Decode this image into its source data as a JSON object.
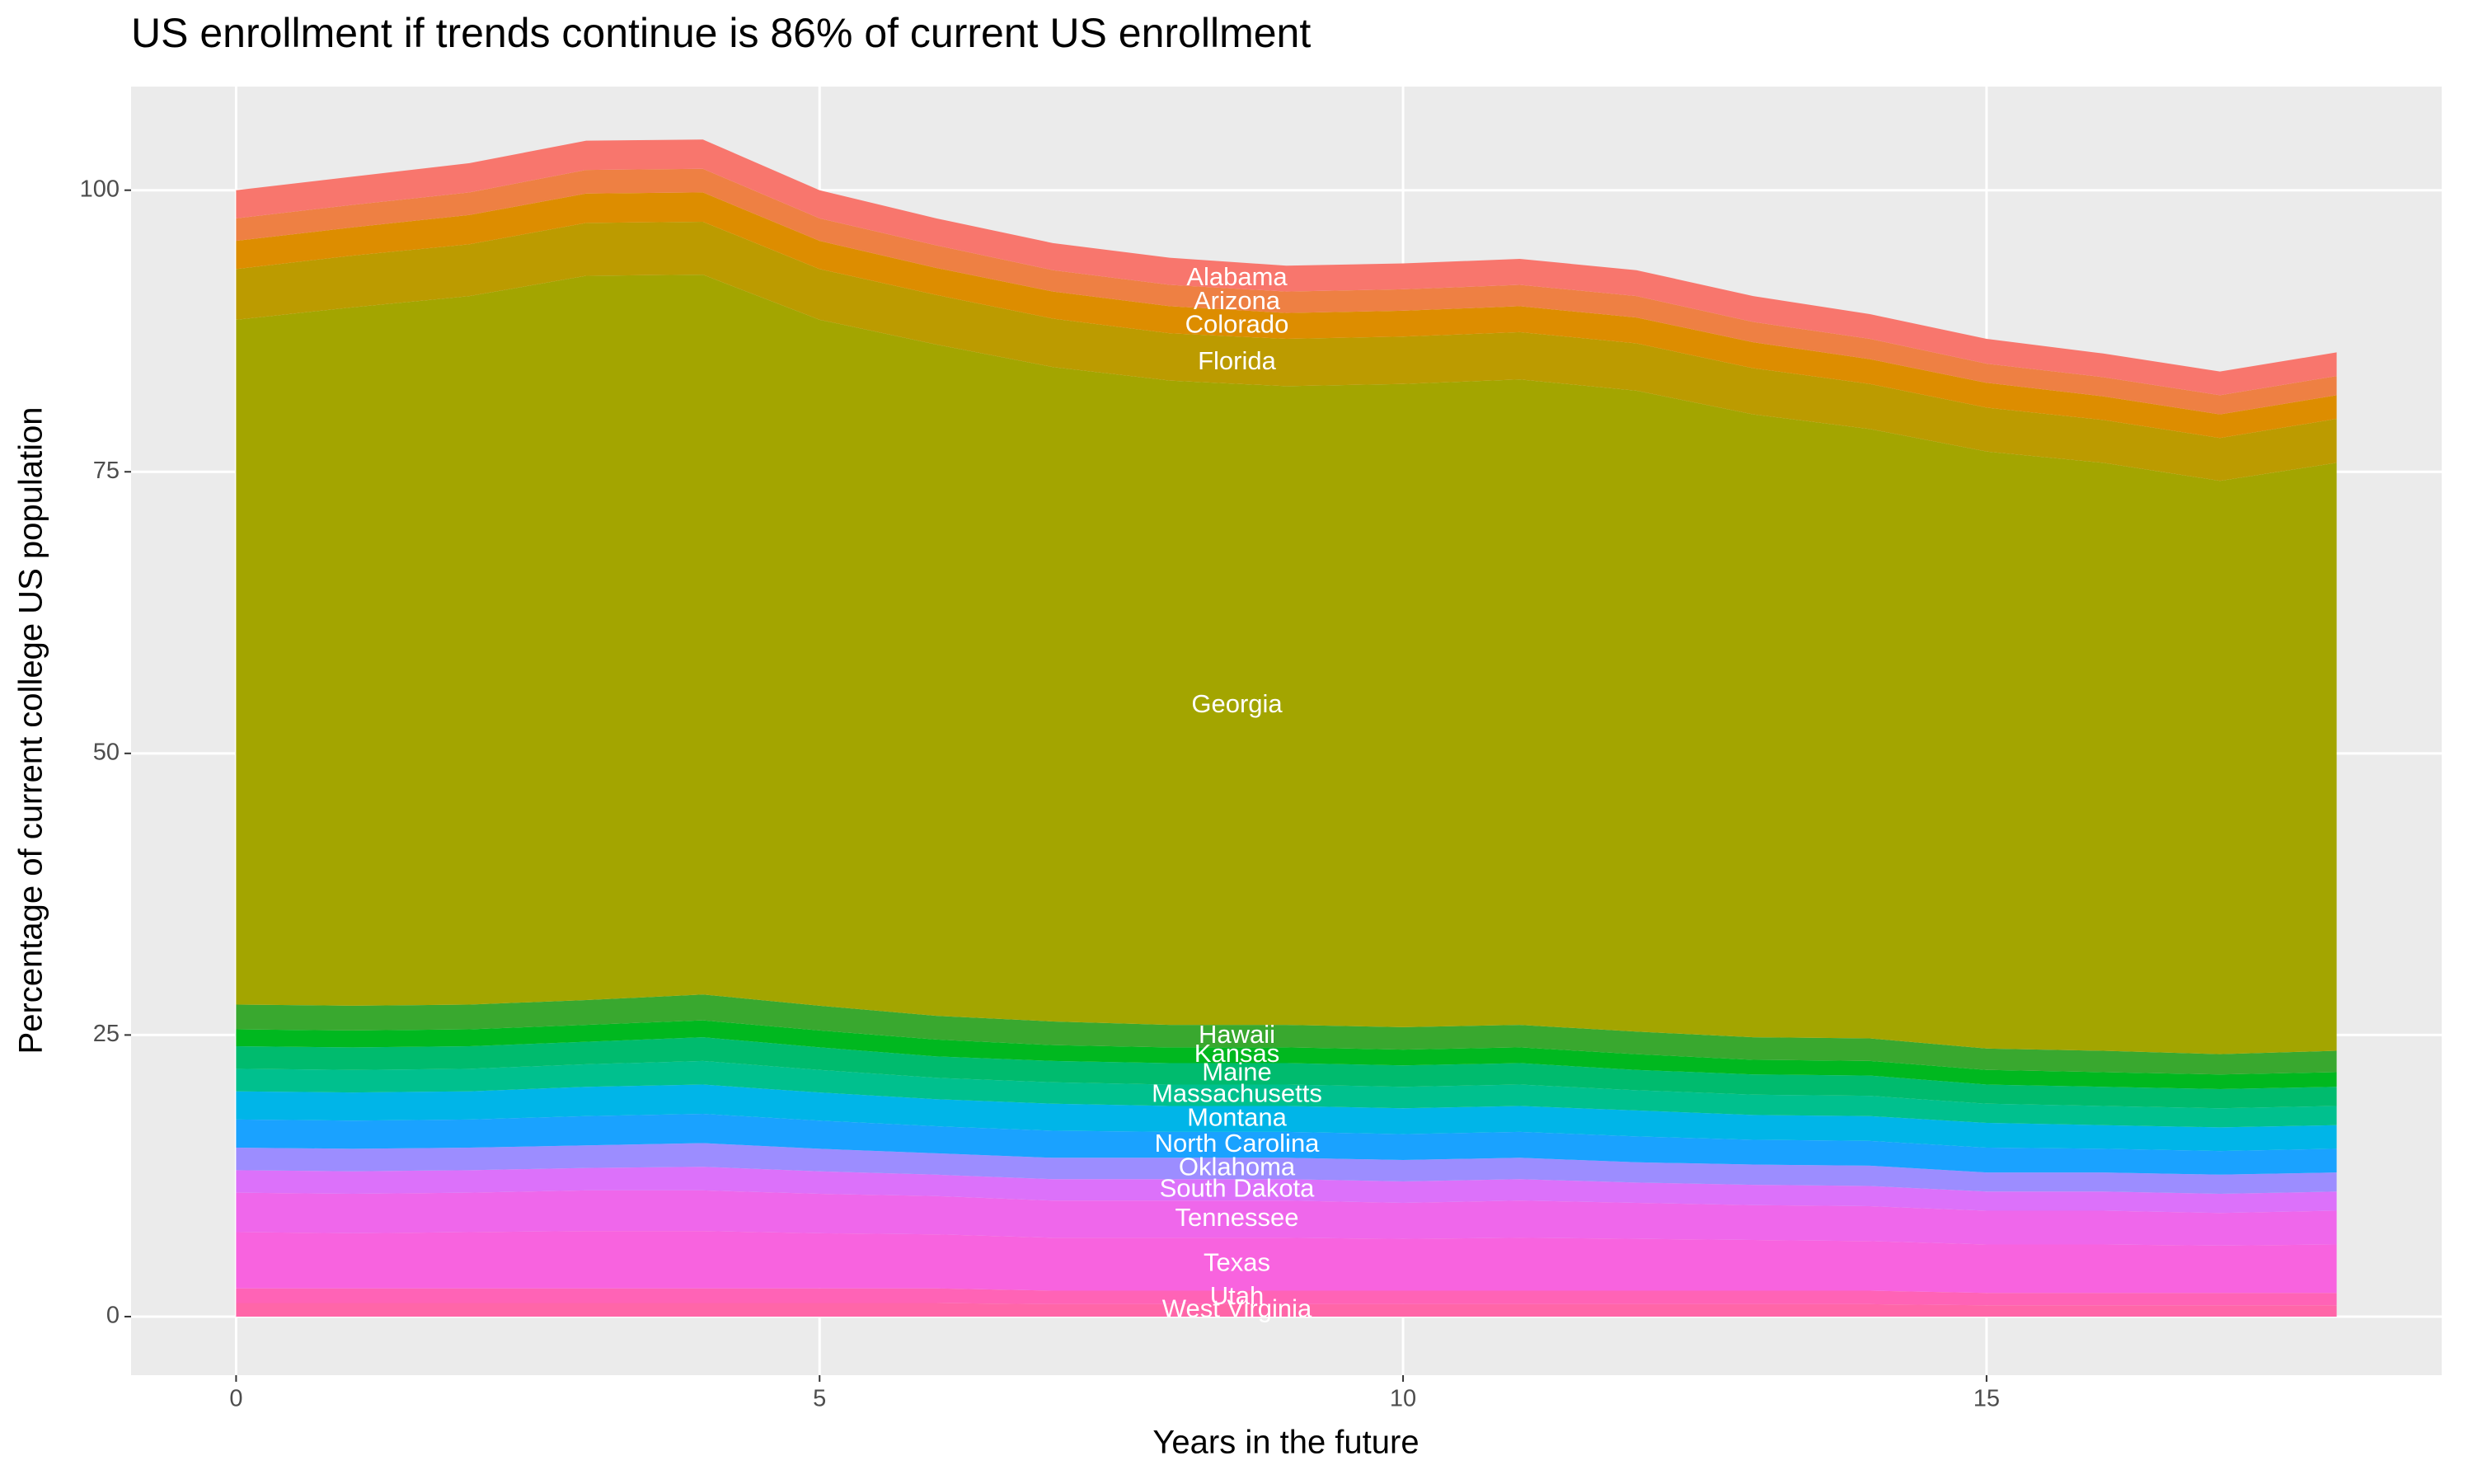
{
  "chart_data": {
    "type": "stacked_area",
    "title": "US enrollment if trends continue is 86% of current US enrollment",
    "x_label": "Years in the future",
    "y_label": "Percentage of current college US population",
    "x": [
      0,
      1,
      2,
      3,
      4,
      5,
      6,
      7,
      8,
      9,
      10,
      11,
      12,
      13,
      14,
      15,
      16,
      17,
      18
    ],
    "xlim": [
      -0.9,
      18.9
    ],
    "xticks": [
      0,
      5,
      10,
      15
    ],
    "ylim": [
      -5.2,
      109.2
    ],
    "yticks": [
      0,
      25,
      50,
      75,
      100
    ],
    "grid": true,
    "series": [
      {
        "name": "Alabama",
        "color": "#F8766D",
        "values": [
          2.5,
          2.5,
          2.6,
          2.6,
          2.6,
          2.5,
          2.4,
          2.4,
          2.4,
          2.3,
          2.3,
          2.3,
          2.3,
          2.3,
          2.2,
          2.2,
          2.1,
          2.1,
          2.1
        ]
      },
      {
        "name": "Arizona",
        "color": "#EE8043",
        "values": [
          2,
          2,
          2,
          2.1,
          2.1,
          2,
          2,
          1.9,
          1.9,
          1.9,
          1.9,
          1.9,
          1.9,
          1.8,
          1.8,
          1.7,
          1.7,
          1.7,
          1.7
        ]
      },
      {
        "name": "Colorado",
        "color": "#DD8D00",
        "values": [
          2.5,
          2.5,
          2.6,
          2.6,
          2.6,
          2.5,
          2.4,
          2.4,
          2.4,
          2.3,
          2.3,
          2.3,
          2.3,
          2.3,
          2.2,
          2.2,
          2.1,
          2.1,
          2.1
        ]
      },
      {
        "name": "Florida",
        "color": "#BC9B00",
        "values": [
          4.5,
          4.6,
          4.6,
          4.7,
          4.7,
          4.5,
          4.4,
          4.3,
          4.2,
          4.2,
          4.2,
          4.2,
          4.2,
          4.1,
          4.0,
          3.9,
          3.8,
          3.8,
          3.9
        ]
      },
      {
        "name": "Georgia",
        "color": "#A3A500",
        "values": [
          60.8,
          62.0,
          62.9,
          64.3,
          63.9,
          60.9,
          59.6,
          58.1,
          57.2,
          56.7,
          57.1,
          57.3,
          56.9,
          55.3,
          54.1,
          53.0,
          52.2,
          50.9,
          52.2
        ]
      },
      {
        "name": "Hawaii",
        "color": "#39A82F",
        "values": [
          2.2,
          2.2,
          2.2,
          2.2,
          2.3,
          2.2,
          2.1,
          2.1,
          2.0,
          2.0,
          2.0,
          2.0,
          2.0,
          2.0,
          2.0,
          1.9,
          1.9,
          1.8,
          1.9
        ]
      },
      {
        "name": "Kansas",
        "color": "#00B81F",
        "values": [
          1.5,
          1.5,
          1.5,
          1.5,
          1.5,
          1.5,
          1.5,
          1.4,
          1.4,
          1.4,
          1.4,
          1.4,
          1.4,
          1.3,
          1.3,
          1.3,
          1.3,
          1.3,
          1.3
        ]
      },
      {
        "name": "Maine",
        "color": "#00BB6E",
        "values": [
          2,
          2,
          2,
          2,
          2.1,
          2,
          1.9,
          1.9,
          1.9,
          1.9,
          1.9,
          1.9,
          1.8,
          1.8,
          1.8,
          1.7,
          1.7,
          1.7,
          1.7
        ]
      },
      {
        "name": "Massachusetts",
        "color": "#00C08E",
        "values": [
          2,
          2,
          2,
          2,
          2.1,
          2,
          1.9,
          1.9,
          1.9,
          1.9,
          1.9,
          1.9,
          1.8,
          1.8,
          1.8,
          1.7,
          1.7,
          1.7,
          1.7
        ]
      },
      {
        "name": "Montana",
        "color": "#00B5E8",
        "values": [
          2.5,
          2.5,
          2.5,
          2.6,
          2.6,
          2.5,
          2.4,
          2.4,
          2.3,
          2.3,
          2.3,
          2.3,
          2.3,
          2.2,
          2.2,
          2.2,
          2.1,
          2.1,
          2.1
        ]
      },
      {
        "name": "North Carolina",
        "color": "#1AA2FF",
        "values": [
          2.5,
          2.5,
          2.5,
          2.6,
          2.6,
          2.5,
          2.4,
          2.4,
          2.3,
          2.3,
          2.3,
          2.3,
          2.3,
          2.2,
          2.2,
          2.2,
          2.1,
          2.1,
          2.1
        ]
      },
      {
        "name": "Oklahoma",
        "color": "#9C8DFF",
        "values": [
          2,
          2,
          2,
          2,
          2.1,
          2,
          1.9,
          1.9,
          1.9,
          1.9,
          1.9,
          1.9,
          1.8,
          1.8,
          1.8,
          1.7,
          1.7,
          1.7,
          1.7
        ]
      },
      {
        "name": "South Dakota",
        "color": "#DC71FA",
        "values": [
          2,
          2,
          2,
          2,
          2.1,
          2,
          1.9,
          1.9,
          1.9,
          1.9,
          1.9,
          1.9,
          1.8,
          1.8,
          1.8,
          1.7,
          1.7,
          1.7,
          1.7
        ]
      },
      {
        "name": "Tennessee",
        "color": "#EF67EB",
        "values": [
          3.5,
          3.5,
          3.5,
          3.6,
          3.6,
          3.5,
          3.4,
          3.3,
          3.3,
          3.3,
          3.2,
          3.3,
          3.2,
          3.1,
          3.1,
          3.0,
          3.0,
          2.9,
          3.0
        ]
      },
      {
        "name": "Texas",
        "color": "#F863DF",
        "values": [
          5,
          4.9,
          5,
          5.1,
          5.1,
          4.9,
          4.8,
          4.7,
          4.7,
          4.7,
          4.6,
          4.7,
          4.6,
          4.5,
          4.4,
          4.3,
          4.3,
          4.2,
          4.3
        ]
      },
      {
        "name": "Utah",
        "color": "#FF63B6",
        "values": [
          1.3,
          1.3,
          1.3,
          1.3,
          1.3,
          1.3,
          1.3,
          1.2,
          1.2,
          1.2,
          1.2,
          1.2,
          1.2,
          1.2,
          1.2,
          1.1,
          1.1,
          1.1,
          1.1
        ]
      },
      {
        "name": "West Virginia",
        "color": "#FF66A8",
        "values": [
          1.2,
          1.2,
          1.2,
          1.2,
          1.2,
          1.2,
          1.2,
          1.1,
          1.1,
          1.1,
          1.1,
          1.1,
          1.1,
          1.1,
          1.1,
          1.0,
          1.0,
          1.0,
          1.0
        ]
      }
    ]
  }
}
